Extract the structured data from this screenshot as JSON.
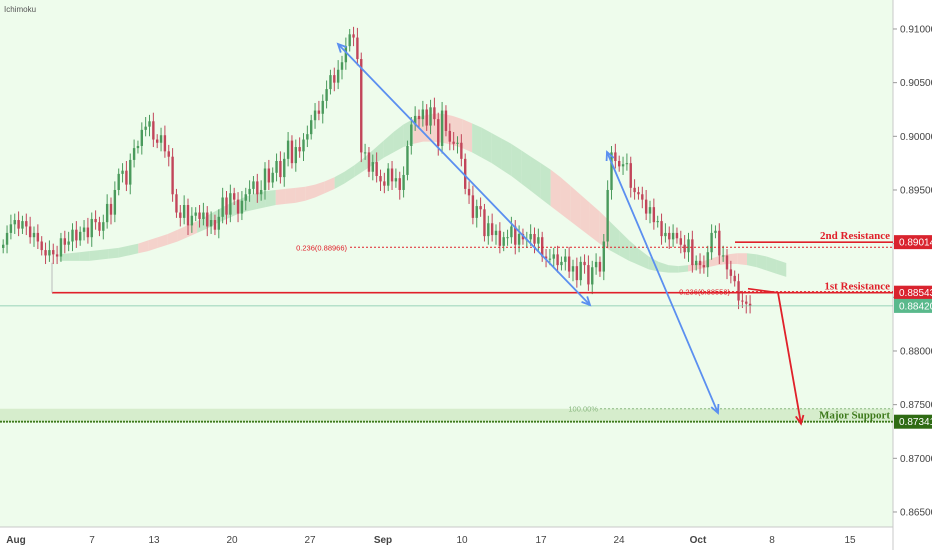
{
  "indicator_label": "Ichimoku",
  "colors": {
    "background": "#eefcec",
    "candle_up": "#4a9a5c",
    "candle_down": "#c2455a",
    "resistance": "#e0202a",
    "support": "#3e7a1c",
    "arrow_blue": "#5b8ff0",
    "arrow_red": "#e0202a",
    "cloud_bull": "#b6e0bd",
    "cloud_bear": "#f6c4c0",
    "last_price": "#5ab98c"
  },
  "chart_data": {
    "type": "candlestick",
    "x_labels": [
      "Aug",
      "7",
      "13",
      "20",
      "27",
      "Sep",
      "10",
      "17",
      "24",
      "Oct",
      "8",
      "15"
    ],
    "y_ticks": [
      "0.91000",
      "0.90500",
      "0.90000",
      "0.89500",
      "0.89000",
      "0.88500",
      "0.88000",
      "0.87500",
      "0.87000",
      "0.86500"
    ],
    "ylim": [
      0.8636,
      0.9127
    ],
    "last_price": "0.88420",
    "levels": [
      {
        "name": "2nd Resistance",
        "price": 0.89014,
        "label": "0.89014"
      },
      {
        "name": "1st Resistance",
        "price": 0.88543,
        "label": "0.88543"
      },
      {
        "name": "Major Support",
        "price": 0.87341,
        "label": "0.87341"
      }
    ],
    "fib_levels": [
      {
        "text": "0.236(0.88966)",
        "price": 0.88966
      },
      {
        "text": "0.236(0.88553)",
        "price": 0.88553
      },
      {
        "text": "100.00%",
        "price": 0.87462
      }
    ],
    "support_zone": [
      0.87341,
      0.87462
    ],
    "closes": [
      0.8899,
      0.891,
      0.8918,
      0.8922,
      0.8914,
      0.8921,
      0.8916,
      0.8906,
      0.891,
      0.8902,
      0.8894,
      0.8889,
      0.8894,
      0.889,
      0.8888,
      0.8905,
      0.8899,
      0.8902,
      0.8913,
      0.8903,
      0.8911,
      0.8915,
      0.8906,
      0.8923,
      0.892,
      0.8912,
      0.892,
      0.8937,
      0.8927,
      0.895,
      0.8965,
      0.8968,
      0.8955,
      0.8978,
      0.8989,
      0.8991,
      0.9006,
      0.9009,
      0.9014,
      0.8997,
      0.8994,
      0.9001,
      0.8986,
      0.8981,
      0.8946,
      0.8929,
      0.8924,
      0.8936,
      0.8917,
      0.8926,
      0.8929,
      0.8923,
      0.8929,
      0.8916,
      0.8922,
      0.8913,
      0.8925,
      0.8943,
      0.8927,
      0.8947,
      0.8941,
      0.8928,
      0.894,
      0.8946,
      0.8951,
      0.8958,
      0.8946,
      0.895,
      0.897,
      0.8957,
      0.8966,
      0.8977,
      0.8962,
      0.8979,
      0.8996,
      0.8975,
      0.899,
      0.8986,
      0.8997,
      0.9002,
      0.9015,
      0.9024,
      0.9021,
      0.9033,
      0.9044,
      0.9057,
      0.905,
      0.9062,
      0.9069,
      0.9084,
      0.9095,
      0.9092,
      0.9072,
      0.8985,
      0.8985,
      0.8967,
      0.8976,
      0.8963,
      0.8958,
      0.8954,
      0.897,
      0.8958,
      0.8961,
      0.895,
      0.8964,
      0.8991,
      0.9011,
      0.9019,
      0.9016,
      0.9025,
      0.901,
      0.9027,
      0.9016,
      0.8991,
      0.9024,
      0.9005,
      0.8995,
      0.8993,
      0.8994,
      0.8979,
      0.8951,
      0.8945,
      0.8924,
      0.8935,
      0.8932,
      0.8907,
      0.8919,
      0.8908,
      0.8912,
      0.8898,
      0.8906,
      0.8906,
      0.8916,
      0.8899,
      0.8909,
      0.8904,
      0.8904,
      0.8909,
      0.89,
      0.8906,
      0.8888,
      0.8886,
      0.8886,
      0.889,
      0.888,
      0.8883,
      0.8888,
      0.8874,
      0.8879,
      0.8866,
      0.8883,
      0.888,
      0.8862,
      0.8878,
      0.8883,
      0.8874,
      0.8902,
      0.895,
      0.8985,
      0.8977,
      0.8972,
      0.8974,
      0.8975,
      0.8952,
      0.8948,
      0.8946,
      0.8941,
      0.8928,
      0.8934,
      0.892,
      0.8921,
      0.8907,
      0.891,
      0.8904,
      0.891,
      0.8905,
      0.8899,
      0.8892,
      0.8904,
      0.888,
      0.8884,
      0.888,
      0.8878,
      0.8892,
      0.891,
      0.8912,
      0.8889,
      0.8889,
      0.8876,
      0.887,
      0.8865,
      0.8847,
      0.8846,
      0.8844,
      0.8842
    ],
    "cloud_top": [
      0.889,
      0.8891,
      0.8892,
      0.8893,
      0.8894,
      0.8895,
      0.8896,
      0.8898,
      0.89,
      0.8903,
      0.8906,
      0.8909,
      0.8913,
      0.8917,
      0.8921,
      0.8926,
      0.8931,
      0.8936,
      0.894,
      0.8944,
      0.8947,
      0.8949,
      0.895,
      0.8951,
      0.8952,
      0.8953,
      0.8955,
      0.8958,
      0.8962,
      0.8967,
      0.8973,
      0.898,
      0.8988,
      0.8996,
      0.9004,
      0.9011,
      0.9016,
      0.9019,
      0.9021,
      0.9021,
      0.9019,
      0.9016,
      0.9012,
      0.9008,
      0.9003,
      0.8998,
      0.8993,
      0.8987,
      0.8981,
      0.8975,
      0.8969,
      0.8962,
      0.8954,
      0.8946,
      0.8938,
      0.893,
      0.8921,
      0.8912,
      0.8903,
      0.8895,
      0.8888,
      0.8883,
      0.888,
      0.8879,
      0.888,
      0.8882,
      0.8885,
      0.8888,
      0.889,
      0.8891,
      0.8891,
      0.889,
      0.8888,
      0.8885,
      0.8882
    ],
    "cloud_bottom": [
      0.8884,
      0.8884,
      0.8884,
      0.8884,
      0.8885,
      0.8886,
      0.8887,
      0.8889,
      0.8891,
      0.8893,
      0.8896,
      0.8899,
      0.8902,
      0.8906,
      0.891,
      0.8914,
      0.8919,
      0.8923,
      0.8927,
      0.893,
      0.8932,
      0.8934,
      0.8936,
      0.8937,
      0.8938,
      0.894,
      0.8943,
      0.8947,
      0.8951,
      0.8956,
      0.8962,
      0.8968,
      0.8974,
      0.898,
      0.8985,
      0.899,
      0.8993,
      0.8995,
      0.8995,
      0.8994,
      0.8992,
      0.8989,
      0.8985,
      0.898,
      0.8975,
      0.8969,
      0.8963,
      0.8956,
      0.8949,
      0.8942,
      0.8935,
      0.8928,
      0.8921,
      0.8914,
      0.8907,
      0.89,
      0.8894,
      0.8889,
      0.8884,
      0.888,
      0.8876,
      0.8874,
      0.8873,
      0.8873,
      0.8874,
      0.8876,
      0.8878,
      0.888,
      0.8881,
      0.8881,
      0.888,
      0.8878,
      0.8875,
      0.8872,
      0.8869
    ]
  }
}
